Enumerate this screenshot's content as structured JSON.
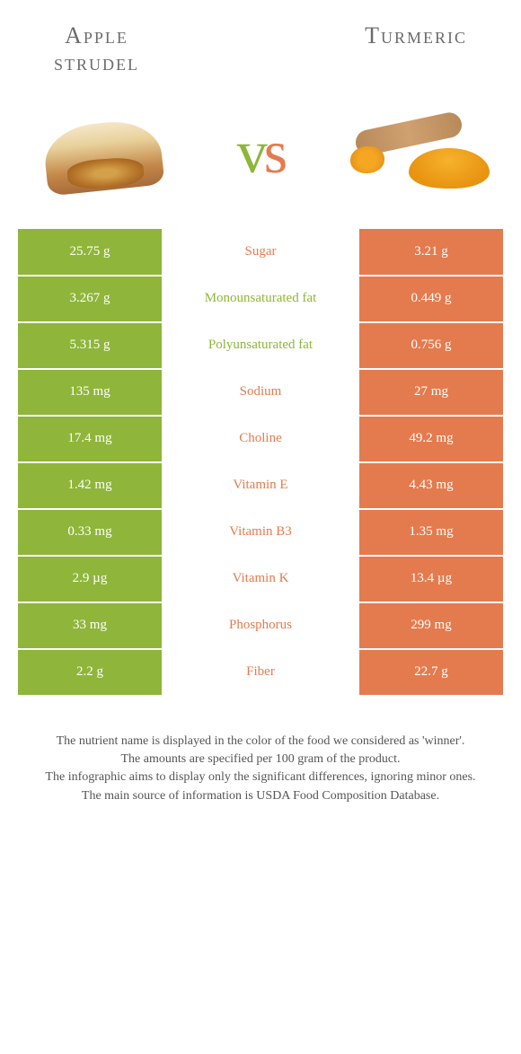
{
  "header": {
    "left_title_line1": "Apple",
    "left_title_line2": "strudel",
    "right_title": "Turmeric"
  },
  "vs": {
    "v": "v",
    "s": "s"
  },
  "colors": {
    "left": "#8fb53a",
    "right": "#e47b4e",
    "mid_bg": "#ffffff"
  },
  "rows": [
    {
      "left": "25.75 g",
      "label": "Sugar",
      "right": "3.21 g",
      "winner": "right"
    },
    {
      "left": "3.267 g",
      "label": "Monounsaturated fat",
      "right": "0.449 g",
      "winner": "left"
    },
    {
      "left": "5.315 g",
      "label": "Polyunsaturated fat",
      "right": "0.756 g",
      "winner": "left"
    },
    {
      "left": "135 mg",
      "label": "Sodium",
      "right": "27 mg",
      "winner": "right"
    },
    {
      "left": "17.4 mg",
      "label": "Choline",
      "right": "49.2 mg",
      "winner": "right"
    },
    {
      "left": "1.42 mg",
      "label": "Vitamin E",
      "right": "4.43 mg",
      "winner": "right"
    },
    {
      "left": "0.33 mg",
      "label": "Vitamin B3",
      "right": "1.35 mg",
      "winner": "right"
    },
    {
      "left": "2.9 µg",
      "label": "Vitamin K",
      "right": "13.4 µg",
      "winner": "right"
    },
    {
      "left": "33 mg",
      "label": "Phosphorus",
      "right": "299 mg",
      "winner": "right"
    },
    {
      "left": "2.2 g",
      "label": "Fiber",
      "right": "22.7 g",
      "winner": "right"
    }
  ],
  "footer": {
    "line1": "The nutrient name is displayed in the color of the food we considered as 'winner'.",
    "line2": "The amounts are specified per 100 gram of the product.",
    "line3": "The infographic aims to display only the significant differences, ignoring minor ones.",
    "line4": "The main source of information is USDA Food Composition Database."
  }
}
